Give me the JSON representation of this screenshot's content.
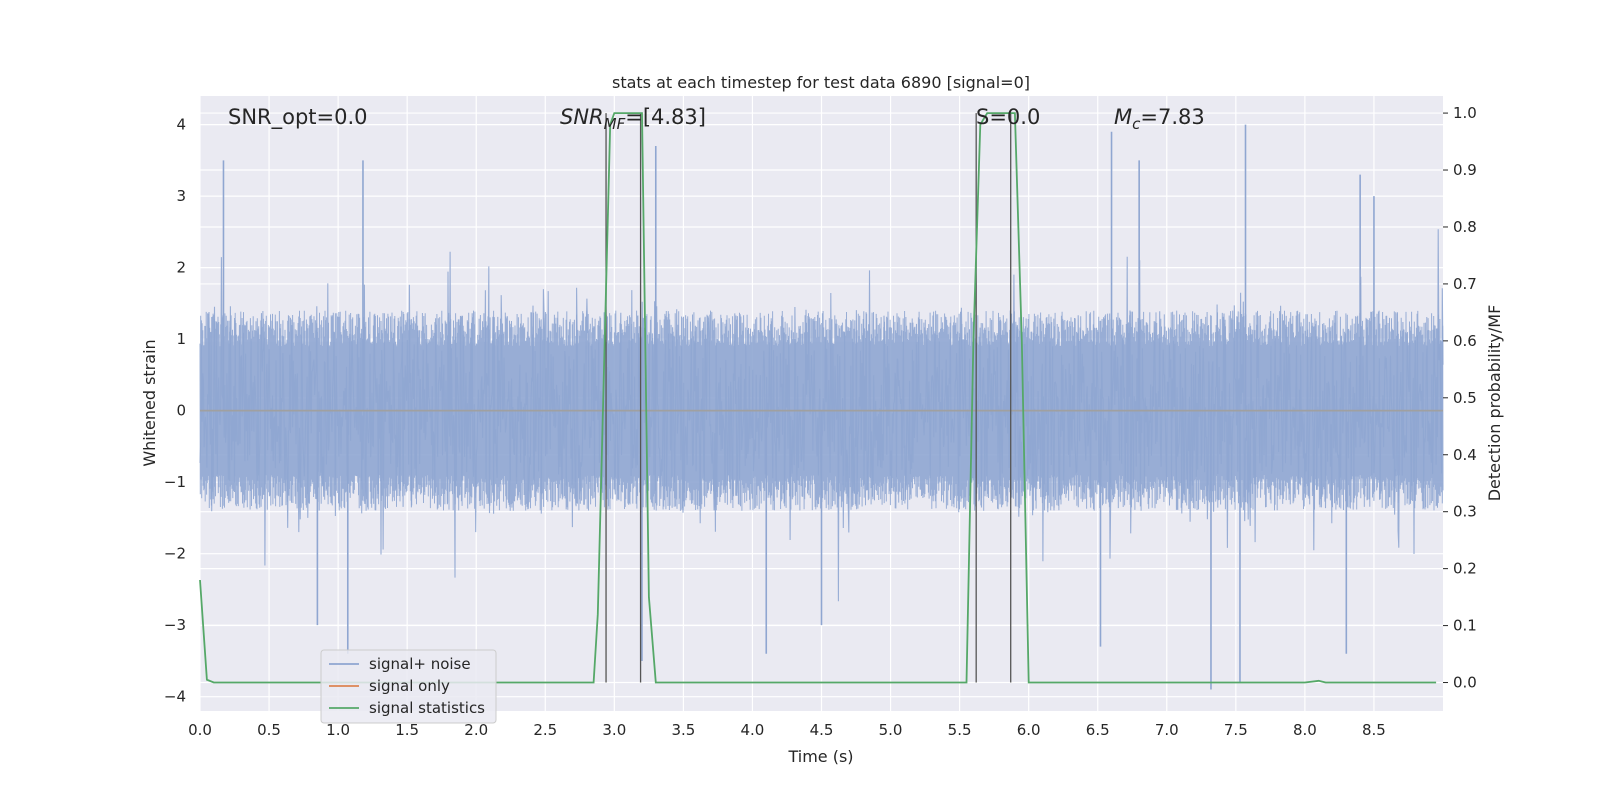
{
  "chart_data": {
    "type": "line",
    "title": "stats at each timestep for test data 6890 [signal=0]",
    "xlabel": "Time (s)",
    "ylabel": "Whitened strain",
    "ylabel_right": "Detection probability/MF",
    "xlim": [
      0.0,
      9.0
    ],
    "ylim": [
      -4.2,
      4.4
    ],
    "ylim_right": [
      -0.05,
      1.03
    ],
    "x_ticks": [
      "0.0",
      "0.5",
      "1.0",
      "1.5",
      "2.0",
      "2.5",
      "3.0",
      "3.5",
      "4.0",
      "4.5",
      "5.0",
      "5.5",
      "6.0",
      "6.5",
      "7.0",
      "7.5",
      "8.0",
      "8.5"
    ],
    "y_ticks": [
      "4",
      "3",
      "2",
      "1",
      "0",
      "−1",
      "−2",
      "−3",
      "−4"
    ],
    "y_right_ticks": [
      "1.0",
      "0.9",
      "0.8",
      "0.7",
      "0.6",
      "0.5",
      "0.4",
      "0.3",
      "0.2",
      "0.1",
      "0.0"
    ],
    "grid": true,
    "legend_position": "lower-left",
    "annotations": {
      "snr_opt": "SNR_opt=0.0",
      "snr_mf_main": "SNR",
      "snr_mf_sub": "MF",
      "snr_mf_value": "=[4.83]",
      "s_value": "S=0.0",
      "mc_main": "M",
      "mc_sub": "c",
      "mc_value": "=7.83"
    },
    "series": [
      {
        "name": "signal+ noise",
        "color": "#8fa6d1",
        "description_values": "whitened strain noise, amplitude roughly within ±2.5 with occasional spikes up to ±4",
        "spikes": [
          {
            "x": 0.17,
            "y": 3.5
          },
          {
            "x": 1.18,
            "y": 3.5
          },
          {
            "x": 0.85,
            "y": -3.0
          },
          {
            "x": 1.07,
            "y": -3.4
          },
          {
            "x": 3.2,
            "y": -3.5
          },
          {
            "x": 3.3,
            "y": 3.7
          },
          {
            "x": 4.1,
            "y": -3.4
          },
          {
            "x": 4.5,
            "y": -3.0
          },
          {
            "x": 6.6,
            "y": 3.9
          },
          {
            "x": 6.8,
            "y": 3.5
          },
          {
            "x": 6.52,
            "y": -3.3
          },
          {
            "x": 7.32,
            "y": -3.9
          },
          {
            "x": 7.53,
            "y": -3.8
          },
          {
            "x": 7.57,
            "y": 4.0
          },
          {
            "x": 8.4,
            "y": 3.3
          },
          {
            "x": 8.5,
            "y": 3.0
          },
          {
            "x": 8.3,
            "y": -3.4
          }
        ]
      },
      {
        "name": "signal only",
        "color": "#dd8452",
        "values_x": [
          0.0,
          9.0
        ],
        "values_y": [
          0.0,
          0.0
        ]
      },
      {
        "name": "signal statistics",
        "color": "#55a868",
        "axis": "right",
        "x": [
          0.0,
          0.05,
          0.1,
          2.85,
          2.88,
          2.93,
          2.97,
          3.0,
          3.2,
          3.25,
          3.3,
          5.55,
          5.6,
          5.65,
          5.7,
          5.9,
          5.95,
          6.0,
          8.0,
          8.1,
          8.15,
          8.95
        ],
        "y": [
          0.18,
          0.005,
          0.0,
          0.0,
          0.12,
          0.6,
          0.98,
          1.0,
          1.0,
          0.15,
          0.0,
          0.0,
          0.6,
          0.98,
          1.0,
          1.0,
          0.6,
          0.0,
          0.0,
          0.003,
          0.0,
          0.0
        ]
      }
    ],
    "vertical_lines_x": [
      2.94,
      3.19,
      5.62,
      5.87
    ]
  }
}
